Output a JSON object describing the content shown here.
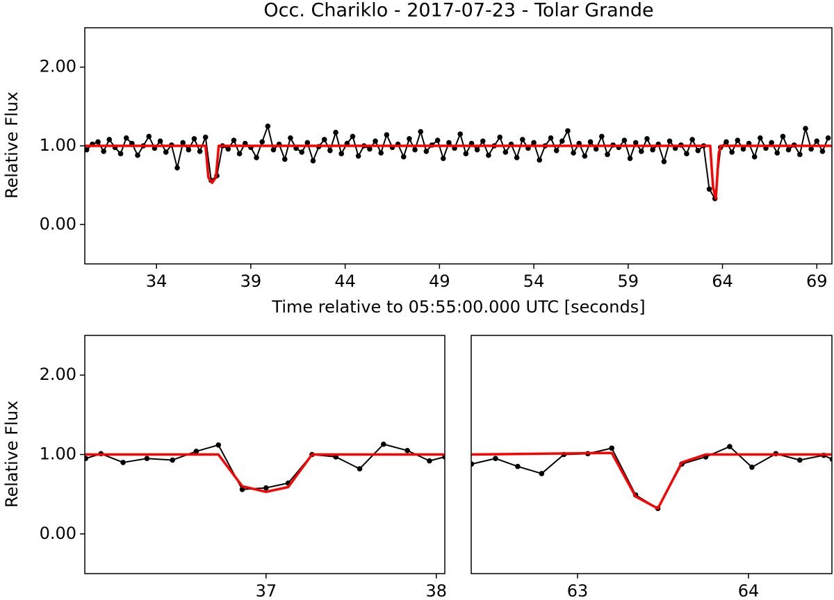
{
  "chart_data": [
    {
      "type": "line",
      "title": "Occ. Chariklo - 2017-07-23 - Tolar Grande",
      "xlabel": "Time relative to 05:55:00.000 UTC [seconds]",
      "ylabel": "Relative Flux",
      "xlim": [
        30.2,
        69.8
      ],
      "ylim": [
        -0.5,
        2.5
      ],
      "xticks": [
        34,
        39,
        44,
        49,
        54,
        59,
        64,
        69
      ],
      "yticks": [
        {
          "value": 0,
          "label": "0.00"
        },
        {
          "value": 1,
          "label": "1.00"
        },
        {
          "value": 2,
          "label": "2.00"
        }
      ],
      "series": [
        {
          "color": "#000000",
          "markers": true,
          "x": [
            30.3,
            30.6,
            30.9,
            31.2,
            31.5,
            31.8,
            32.1,
            32.4,
            32.7,
            33.0,
            33.3,
            33.6,
            33.9,
            34.2,
            34.5,
            34.8,
            35.1,
            35.4,
            35.7,
            36.0,
            36.3,
            36.6,
            36.9,
            37.2,
            37.5,
            37.8,
            38.1,
            38.4,
            38.7,
            39.0,
            39.3,
            39.6,
            39.9,
            40.2,
            40.5,
            40.8,
            41.1,
            41.4,
            41.7,
            42.0,
            42.3,
            42.6,
            42.9,
            43.2,
            43.5,
            43.8,
            44.1,
            44.4,
            44.7,
            45.0,
            45.3,
            45.6,
            45.9,
            46.2,
            46.5,
            46.8,
            47.1,
            47.4,
            47.7,
            48.0,
            48.3,
            48.6,
            48.9,
            49.2,
            49.5,
            49.8,
            50.1,
            50.4,
            50.7,
            51.0,
            51.3,
            51.6,
            51.9,
            52.2,
            52.5,
            52.8,
            53.1,
            53.4,
            53.7,
            54.0,
            54.3,
            54.6,
            54.9,
            55.2,
            55.5,
            55.8,
            56.1,
            56.4,
            56.7,
            57.0,
            57.3,
            57.6,
            57.9,
            58.2,
            58.5,
            58.8,
            59.1,
            59.4,
            59.7,
            60.0,
            60.3,
            60.6,
            60.9,
            61.2,
            61.5,
            61.8,
            62.1,
            62.4,
            62.7,
            63.0,
            63.3,
            63.6,
            63.9,
            64.2,
            64.5,
            64.8,
            65.1,
            65.4,
            65.7,
            66.0,
            66.3,
            66.6,
            66.9,
            67.2,
            67.5,
            67.8,
            68.1,
            68.4,
            68.7,
            69.0,
            69.3,
            69.6
          ],
          "values": [
            0.95,
            1.02,
            1.05,
            0.93,
            1.08,
            0.98,
            0.9,
            1.1,
            1.03,
            0.88,
            1.0,
            1.12,
            0.97,
            1.06,
            0.92,
            1.01,
            0.72,
            1.04,
            0.95,
            1.09,
            0.93,
            1.11,
            0.56,
            0.62,
            1.0,
            0.96,
            1.07,
            0.9,
            1.03,
            0.98,
            0.85,
            1.05,
            1.25,
            0.95,
            1.02,
            0.83,
            1.1,
            0.97,
            0.92,
            1.04,
            0.81,
            0.99,
            1.08,
            0.94,
            1.17,
            0.9,
            1.03,
            1.12,
            0.87,
            1.0,
            0.96,
            1.06,
            0.91,
            1.14,
            0.98,
            1.02,
            0.86,
            1.09,
            0.95,
            1.18,
            0.93,
            1.01,
            1.07,
            0.84,
            1.04,
            0.97,
            1.15,
            0.9,
            1.03,
            0.95,
            1.06,
            0.88,
            1.0,
            1.11,
            0.92,
            1.02,
            0.85,
            1.08,
            0.97,
            1.04,
            0.82,
            1.0,
            1.1,
            0.94,
            1.06,
            1.19,
            0.91,
            1.03,
            0.87,
            1.05,
            0.96,
            1.12,
            0.89,
            1.01,
            0.98,
            1.07,
            0.84,
            1.04,
            0.93,
            1.09,
            0.95,
            1.02,
            0.8,
            1.06,
            0.97,
            1.01,
            0.9,
            1.08,
            0.94,
            1.0,
            0.45,
            0.33,
            0.98,
            1.05,
            0.92,
            1.07,
            0.96,
            1.03,
            0.86,
            1.1,
            0.97,
            1.04,
            0.91,
            1.12,
            0.95,
            1.01,
            0.89,
            1.22,
            0.96,
            1.06,
            0.93,
            1.1
          ]
        },
        {
          "color": "#ff0000",
          "markers": false,
          "x": [
            30.2,
            36.6,
            36.75,
            36.95,
            37.15,
            37.3,
            63.35,
            63.5,
            63.65,
            63.8,
            63.9,
            69.8
          ],
          "values": [
            1,
            1,
            0.6,
            0.53,
            0.6,
            1,
            1,
            0.47,
            0.33,
            0.9,
            1,
            1
          ]
        }
      ]
    },
    {
      "type": "line",
      "ylabel": "Relative Flux",
      "xlim": [
        35.935,
        38.05
      ],
      "ylim": [
        -0.5,
        2.5
      ],
      "xticks": [
        37,
        38
      ],
      "yticks": [
        {
          "value": 0,
          "label": "0.00"
        },
        {
          "value": 1,
          "label": "1.00"
        },
        {
          "value": 2,
          "label": "2.00"
        }
      ],
      "series": [
        {
          "color": "#000000",
          "markers": true,
          "x": [
            35.94,
            36.03,
            36.16,
            36.3,
            36.45,
            36.59,
            36.72,
            36.86,
            37.0,
            37.13,
            37.27,
            37.41,
            37.55,
            37.69,
            37.83,
            37.96,
            38.05
          ],
          "values": [
            0.95,
            1.01,
            0.9,
            0.95,
            0.93,
            1.04,
            1.12,
            0.56,
            0.58,
            0.64,
            1.0,
            0.97,
            0.82,
            1.13,
            1.05,
            0.92,
            0.97
          ]
        },
        {
          "color": "#ff0000",
          "markers": false,
          "x": [
            35.935,
            36.72,
            36.86,
            37.0,
            37.13,
            37.27,
            38.05
          ],
          "values": [
            1,
            1,
            0.6,
            0.53,
            0.59,
            1,
            1
          ]
        }
      ]
    },
    {
      "type": "line",
      "xlim": [
        62.378,
        64.488
      ],
      "ylim": [
        -0.5,
        2.5
      ],
      "xticks": [
        63,
        64
      ],
      "series": [
        {
          "color": "#000000",
          "markers": true,
          "x": [
            62.38,
            62.52,
            62.65,
            62.79,
            62.92,
            63.06,
            63.2,
            63.34,
            63.47,
            63.61,
            63.75,
            63.89,
            64.02,
            64.16,
            64.3,
            64.44,
            64.49
          ],
          "values": [
            0.88,
            0.95,
            0.85,
            0.76,
            1.0,
            1.01,
            1.08,
            0.49,
            0.32,
            0.88,
            0.97,
            1.1,
            0.84,
            1.01,
            0.93,
            0.99,
            0.94
          ]
        },
        {
          "color": "#ff0000",
          "markers": false,
          "x": [
            62.378,
            63.2,
            63.34,
            63.47,
            63.61,
            63.75,
            64.488
          ],
          "values": [
            1,
            1.02,
            0.47,
            0.32,
            0.9,
            1,
            1
          ]
        }
      ]
    }
  ]
}
